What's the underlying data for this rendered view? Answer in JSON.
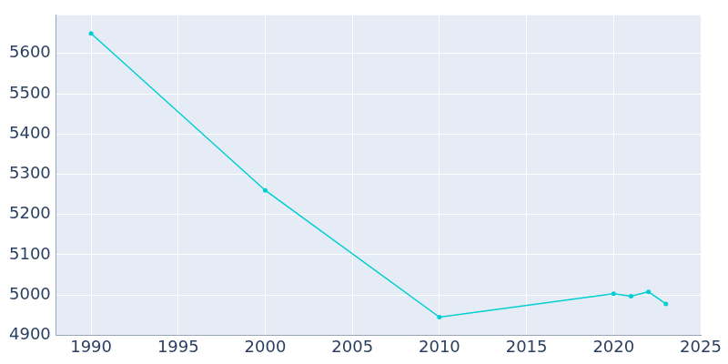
{
  "chart_data": {
    "type": "line",
    "x": [
      1990,
      2000,
      2010,
      2020,
      2021,
      2022,
      2023
    ],
    "values": [
      5650,
      5260,
      4945,
      5003,
      4997,
      5008,
      4978
    ],
    "color": "#00CED1",
    "marker": "circle",
    "xlim": [
      1988,
      2025
    ],
    "xticks": [
      1990,
      1995,
      2000,
      2005,
      2010,
      2015,
      2020,
      2025
    ],
    "ylim": [
      4900,
      5695
    ],
    "yticks": [
      4900,
      5000,
      5100,
      5200,
      5300,
      5400,
      5500,
      5600
    ],
    "grid": true
  }
}
